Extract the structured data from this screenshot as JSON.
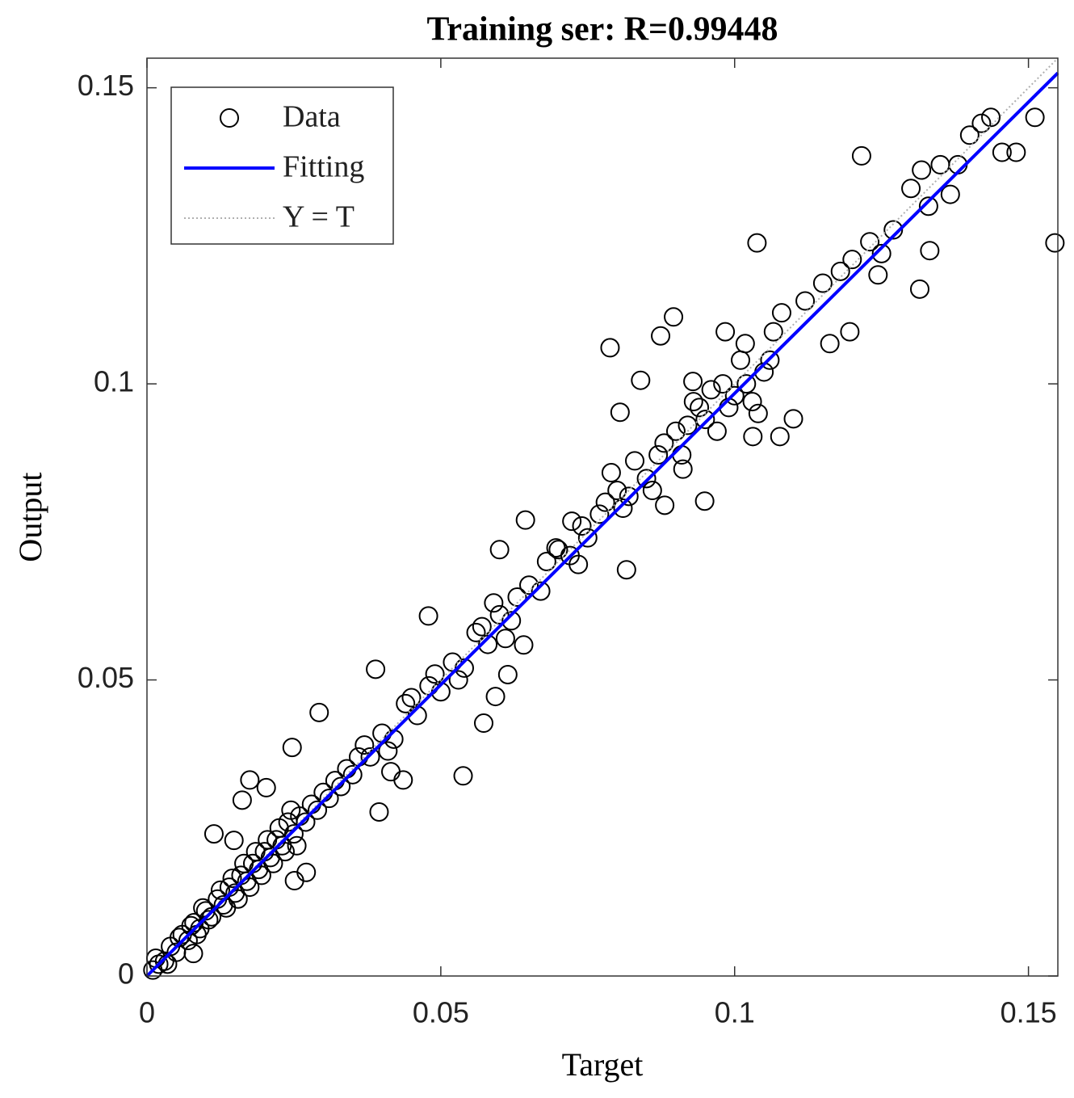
{
  "chart_data": {
    "type": "scatter",
    "title": "Training ser: R=0.99448",
    "xlabel": "Target",
    "ylabel": "Output",
    "xlim": [
      0,
      0.155
    ],
    "ylim": [
      0,
      0.155
    ],
    "xticks": [
      0,
      0.05,
      0.1,
      0.15
    ],
    "yticks": [
      0,
      0.05,
      0.1,
      0.15
    ],
    "legend": "upper left",
    "series": [
      {
        "name": "Data",
        "style": "marker",
        "color": "#000000",
        "x": [
          0.001,
          0.002,
          0.003,
          0.004,
          0.005,
          0.006,
          0.007,
          0.008,
          0.009,
          0.01,
          0.011,
          0.012,
          0.013,
          0.014,
          0.015,
          0.016,
          0.017,
          0.018,
          0.019,
          0.02,
          0.021,
          0.022,
          0.023,
          0.024,
          0.025,
          0.026,
          0.027,
          0.028,
          0.029,
          0.03,
          0.031,
          0.032,
          0.033,
          0.034,
          0.035,
          0.036,
          0.038,
          0.04,
          0.042,
          0.044,
          0.046,
          0.048,
          0.05,
          0.052,
          0.054,
          0.056,
          0.058,
          0.06,
          0.062,
          0.065,
          0.068,
          0.07,
          0.072,
          0.075,
          0.078,
          0.08,
          0.082,
          0.085,
          0.088,
          0.09,
          0.092,
          0.095,
          0.098,
          0.1,
          0.102,
          0.105,
          0.1216,
          0.1545,
          0.1038,
          0.0788,
          0.0896,
          0.1315,
          0.1162,
          0.1196,
          0.0949,
          0.0816,
          0.0644,
          0.0479,
          0.0389,
          0.0293,
          0.0538,
          0.0573,
          0.0247,
          0.0114,
          0.0079,
          0.1318,
          0.1436,
          0.1511,
          0.1479,
          0.1455,
          0.1367,
          0.1332,
          0.1244,
          0.1066,
          0.11,
          0.1031,
          0.1077,
          0.0874,
          0.084,
          0.0805,
          0.0912,
          0.0881,
          0.0929,
          0.0984,
          0.1018,
          0.06,
          0.0723,
          0.0696,
          0.0734,
          0.0641,
          0.0614,
          0.0593,
          0.0436,
          0.0415,
          0.0395,
          0.0271,
          0.0251,
          0.0175,
          0.0203,
          0.0162,
          0.0148,
          0.037,
          0.041,
          0.045,
          0.049,
          0.053,
          0.057,
          0.059,
          0.061,
          0.063,
          0.067,
          0.074,
          0.077,
          0.079,
          0.081,
          0.083,
          0.086,
          0.087,
          0.091,
          0.093,
          0.094,
          0.096,
          0.097,
          0.099,
          0.101,
          0.103,
          0.104,
          0.106,
          0.108,
          0.112,
          0.115,
          0.118,
          0.12,
          0.123,
          0.125,
          0.127,
          0.13,
          0.133,
          0.135,
          0.138,
          0.14,
          0.142,
          0.0015,
          0.0035,
          0.0055,
          0.0075,
          0.0085,
          0.0095,
          0.0105,
          0.0125,
          0.0135,
          0.0145,
          0.0155,
          0.0165,
          0.0175,
          0.0185,
          0.0195,
          0.0205,
          0.0215,
          0.0225,
          0.0235,
          0.0245,
          0.0255
        ],
        "values": [
          0.001,
          0.002,
          0.0025,
          0.005,
          0.004,
          0.007,
          0.006,
          0.009,
          0.008,
          0.011,
          0.01,
          0.013,
          0.012,
          0.015,
          0.014,
          0.017,
          0.016,
          0.019,
          0.018,
          0.021,
          0.02,
          0.023,
          0.022,
          0.026,
          0.024,
          0.027,
          0.026,
          0.029,
          0.028,
          0.031,
          0.03,
          0.033,
          0.032,
          0.035,
          0.034,
          0.037,
          0.037,
          0.041,
          0.04,
          0.046,
          0.044,
          0.049,
          0.048,
          0.053,
          0.052,
          0.058,
          0.056,
          0.061,
          0.06,
          0.066,
          0.07,
          0.072,
          0.071,
          0.074,
          0.08,
          0.082,
          0.081,
          0.084,
          0.09,
          0.092,
          0.093,
          0.094,
          0.1,
          0.098,
          0.1,
          0.102,
          0.1385,
          0.1238,
          0.1238,
          0.1061,
          0.1113,
          0.116,
          0.1068,
          0.1088,
          0.0802,
          0.0686,
          0.077,
          0.0608,
          0.0518,
          0.0445,
          0.0338,
          0.0427,
          0.0386,
          0.024,
          0.0038,
          0.1361,
          0.145,
          0.145,
          0.1391,
          0.1391,
          0.132,
          0.1225,
          0.1184,
          0.1088,
          0.0941,
          0.0911,
          0.0911,
          0.1081,
          0.1006,
          0.0952,
          0.0856,
          0.0795,
          0.1004,
          0.1088,
          0.1068,
          0.072,
          0.0768,
          0.0723,
          0.0695,
          0.0559,
          0.0509,
          0.0472,
          0.0331,
          0.0345,
          0.0277,
          0.0175,
          0.0161,
          0.0331,
          0.0318,
          0.0297,
          0.0229,
          0.039,
          0.038,
          0.047,
          0.051,
          0.05,
          0.059,
          0.063,
          0.057,
          0.064,
          0.065,
          0.076,
          0.078,
          0.085,
          0.079,
          0.087,
          0.082,
          0.088,
          0.088,
          0.097,
          0.096,
          0.099,
          0.092,
          0.096,
          0.104,
          0.097,
          0.095,
          0.104,
          0.112,
          0.114,
          0.117,
          0.119,
          0.121,
          0.124,
          0.122,
          0.126,
          0.133,
          0.13,
          0.137,
          0.137,
          0.142,
          0.144,
          0.003,
          0.002,
          0.0065,
          0.0085,
          0.007,
          0.0115,
          0.0095,
          0.0145,
          0.0115,
          0.0165,
          0.013,
          0.019,
          0.015,
          0.021,
          0.017,
          0.023,
          0.019,
          0.025,
          0.021,
          0.028,
          0.022
        ]
      },
      {
        "name": "Fitting",
        "style": "solid",
        "color": "#0000ff",
        "x": [
          0,
          0.155
        ],
        "values": [
          0,
          0.1525
        ]
      },
      {
        "name": "Y = T",
        "style": "dotted",
        "color": "#b0b0b0",
        "x": [
          0,
          0.155
        ],
        "values": [
          0,
          0.155
        ]
      }
    ]
  }
}
